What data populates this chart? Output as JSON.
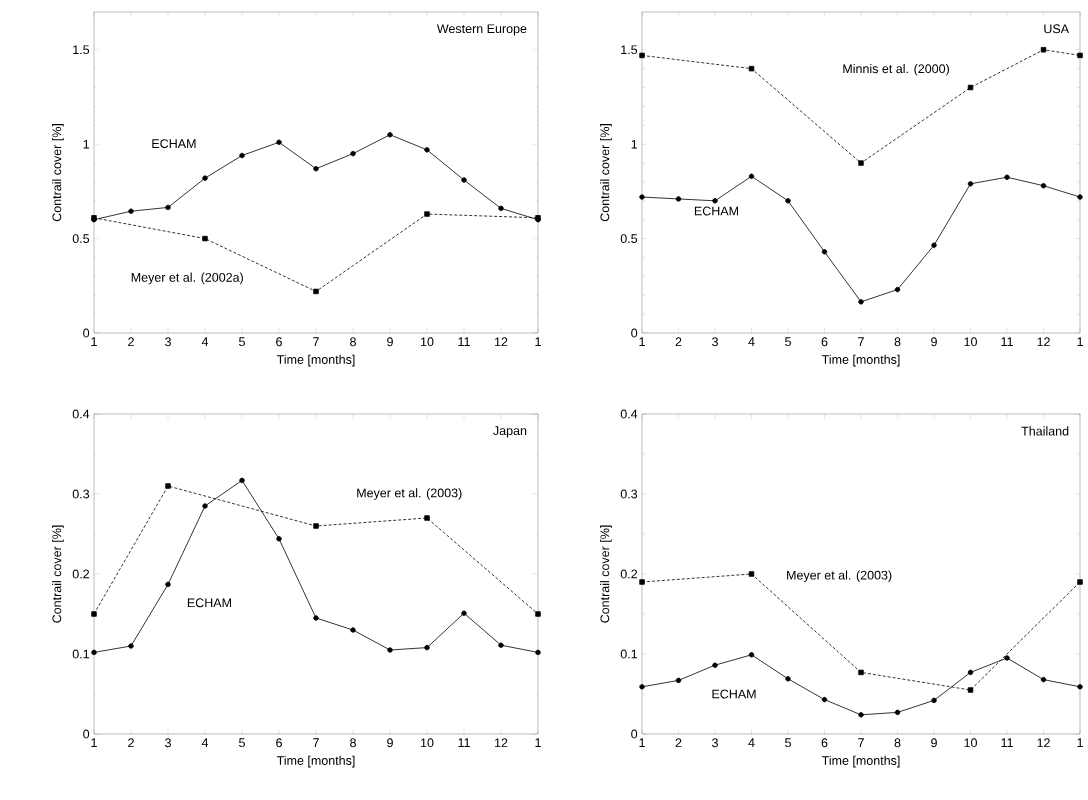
{
  "chart_data": [
    {
      "type": "line",
      "title": "Western Europe",
      "xlabel": "Time [months]",
      "ylabel": "Contrail cover [%]",
      "categories": [
        "1",
        "2",
        "3",
        "4",
        "5",
        "6",
        "7",
        "8",
        "9",
        "10",
        "11",
        "12",
        "1"
      ],
      "ylim": [
        0,
        1.7
      ],
      "yticks": [
        0,
        0.5,
        1,
        1.5
      ],
      "series": [
        {
          "name": "ECHAM",
          "color": "#000000",
          "marker": "circle",
          "line_style": "solid",
          "values": [
            0.6,
            0.645,
            0.665,
            0.82,
            0.94,
            1.01,
            0.87,
            0.95,
            1.05,
            0.97,
            0.81,
            0.66,
            0.6
          ]
        },
        {
          "name": "Meyer et al. (2002a)",
          "color": "#000000",
          "marker": "square",
          "line_style": "dashed",
          "values": [
            0.61,
            null,
            null,
            0.5,
            null,
            null,
            0.22,
            null,
            null,
            0.63,
            null,
            null,
            0.61
          ]
        }
      ]
    },
    {
      "type": "line",
      "title": "USA",
      "xlabel": "Time [months]",
      "ylabel": "Contrail cover [%]",
      "categories": [
        "1",
        "2",
        "3",
        "4",
        "5",
        "6",
        "7",
        "8",
        "9",
        "10",
        "11",
        "12",
        "1"
      ],
      "ylim": [
        0,
        1.7
      ],
      "yticks": [
        0,
        0.5,
        1,
        1.5
      ],
      "series": [
        {
          "name": "ECHAM",
          "color": "#000000",
          "marker": "circle",
          "line_style": "solid",
          "values": [
            0.72,
            0.71,
            0.7,
            0.83,
            0.7,
            0.43,
            0.165,
            0.23,
            0.465,
            0.79,
            0.825,
            0.78,
            0.72
          ]
        },
        {
          "name": "Minnis et al. (2000)",
          "color": "#000000",
          "marker": "square",
          "line_style": "dashed",
          "values": [
            1.47,
            null,
            null,
            1.4,
            null,
            null,
            0.9,
            null,
            null,
            1.3,
            null,
            1.5,
            1.47
          ]
        }
      ]
    },
    {
      "type": "line",
      "title": "Japan",
      "xlabel": "Time [months]",
      "ylabel": "Contrail cover [%]",
      "categories": [
        "1",
        "2",
        "3",
        "4",
        "5",
        "6",
        "7",
        "8",
        "9",
        "10",
        "11",
        "12",
        "1"
      ],
      "ylim": [
        0,
        0.4
      ],
      "yticks": [
        0,
        0.1,
        0.2,
        0.3,
        0.4
      ],
      "series": [
        {
          "name": "ECHAM",
          "color": "#000000",
          "marker": "circle",
          "line_style": "solid",
          "values": [
            0.102,
            0.11,
            0.187,
            0.285,
            0.317,
            0.244,
            0.145,
            0.13,
            0.105,
            0.108,
            0.151,
            0.111,
            0.102
          ]
        },
        {
          "name": "Meyer et al. (2003)",
          "color": "#000000",
          "marker": "square",
          "line_style": "dashed",
          "values": [
            0.15,
            null,
            0.31,
            null,
            null,
            null,
            0.26,
            null,
            null,
            0.27,
            null,
            null,
            0.15
          ]
        }
      ]
    },
    {
      "type": "line",
      "title": "Thailand",
      "xlabel": "Time [months]",
      "ylabel": "Contrail cover [%]",
      "categories": [
        "1",
        "2",
        "3",
        "4",
        "5",
        "6",
        "7",
        "8",
        "9",
        "10",
        "11",
        "12",
        "1"
      ],
      "ylim": [
        0,
        0.4
      ],
      "yticks": [
        0,
        0.1,
        0.2,
        0.3,
        0.4
      ],
      "series": [
        {
          "name": "ECHAM",
          "color": "#000000",
          "marker": "circle",
          "line_style": "solid",
          "values": [
            0.059,
            0.067,
            0.086,
            0.099,
            0.069,
            0.043,
            0.024,
            0.027,
            0.042,
            0.077,
            0.095,
            0.068,
            0.059
          ]
        },
        {
          "name": "Meyer et al. (2003)",
          "color": "#000000",
          "marker": "square",
          "line_style": "dashed",
          "values": [
            0.19,
            null,
            null,
            0.2,
            null,
            null,
            0.077,
            null,
            null,
            0.055,
            null,
            null,
            0.19
          ]
        }
      ]
    }
  ]
}
